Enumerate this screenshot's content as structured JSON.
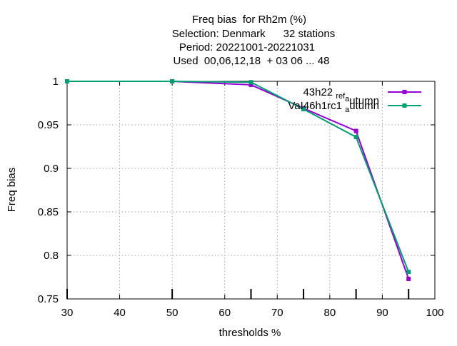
{
  "chart_data": {
    "type": "line",
    "title_lines": [
      "Freq bias  for Rh2m (%)",
      "Selection: Denmark      32 stations",
      "Period: 20221001-20221031",
      "Used  00,06,12,18  + 03 06 ... 48"
    ],
    "xlabel": "thresholds %",
    "ylabel": "Freq bias",
    "xlim": [
      30,
      100
    ],
    "ylim": [
      0.75,
      1.0
    ],
    "x_ticks": [
      "30",
      "40",
      "50",
      "60",
      "70",
      "80",
      "90",
      "100"
    ],
    "y_ticks": [
      "0.75",
      "0.8",
      "0.85",
      "0.9",
      "0.95",
      "1"
    ],
    "grid": true,
    "legend_position": "top-right",
    "x_data_marks": [
      30,
      50,
      65,
      75,
      85,
      95
    ],
    "series": [
      {
        "name": "43h22",
        "name_sub": "ref",
        "name_sub2": "a",
        "name_tail": "utumn",
        "color": "#9400d3",
        "x": [
          30,
          50,
          65,
          75,
          85,
          95
        ],
        "y": [
          1.0,
          1.0,
          0.996,
          0.969,
          0.943,
          0.773
        ]
      },
      {
        "name": "VaI46h1rc1",
        "name_sub": "a",
        "name_tail": "utumn",
        "color": "#009e73",
        "x": [
          30,
          50,
          65,
          75,
          85,
          95
        ],
        "y": [
          1.0,
          1.0,
          0.999,
          0.968,
          0.936,
          0.781
        ]
      }
    ]
  }
}
